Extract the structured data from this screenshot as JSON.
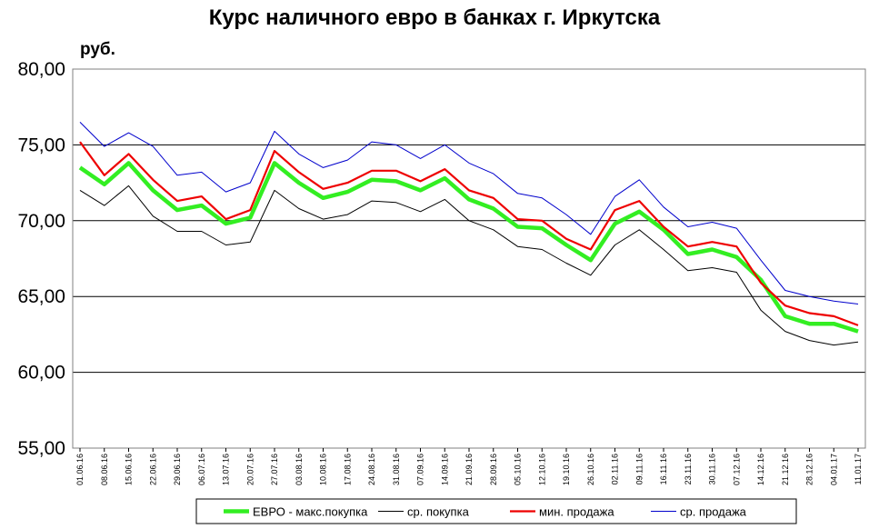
{
  "chart_data": {
    "type": "line",
    "title": "Курс наличного евро в банках г. Иркутска",
    "ylabel": "руб.",
    "xlabel": "",
    "ylim": [
      55,
      80
    ],
    "yticks": [
      "55,00",
      "60,00",
      "65,00",
      "70,00",
      "75,00",
      "80,00"
    ],
    "grid": "horizontal",
    "legend_position": "bottom",
    "x": [
      "01.06.16",
      "08.06.16",
      "15.06.16",
      "22.06.16",
      "29.06.16",
      "06.07.16",
      "13.07.16",
      "20.07.16",
      "27.07.16",
      "03.08.16",
      "10.08.16",
      "17.08.16",
      "24.08.16",
      "31.08.16",
      "07.09.16",
      "14.09.16",
      "21.09.16",
      "28.09.16",
      "05.10.16",
      "12.10.16",
      "19.10.16",
      "26.10.16",
      "02.11.16",
      "09.11.16",
      "16.11.16",
      "23.11.16",
      "30.11.16",
      "07.12.16",
      "14.12.16",
      "21.12.16",
      "28.12.16",
      "04.01.17",
      "11.01.17"
    ],
    "series": [
      {
        "name": "ЕВРО - макс.покупка",
        "color": "#33ee22",
        "values": [
          73.5,
          72.4,
          73.8,
          72.0,
          70.7,
          71.0,
          69.8,
          70.2,
          73.8,
          72.5,
          71.5,
          71.9,
          72.7,
          72.6,
          72.0,
          72.8,
          71.4,
          70.8,
          69.6,
          69.5,
          68.4,
          67.4,
          69.8,
          70.6,
          69.4,
          67.8,
          68.1,
          67.6,
          66.1,
          63.7,
          63.2,
          63.2,
          62.7
        ]
      },
      {
        "name": "ср. покупка",
        "color": "#000000",
        "values": [
          72.0,
          71.0,
          72.3,
          70.3,
          69.3,
          69.3,
          68.4,
          68.6,
          72.0,
          70.8,
          70.1,
          70.4,
          71.3,
          71.2,
          70.6,
          71.4,
          70.0,
          69.4,
          68.3,
          68.1,
          67.2,
          66.4,
          68.4,
          69.4,
          68.1,
          66.7,
          66.9,
          66.6,
          64.1,
          62.7,
          62.1,
          61.8,
          62.0
        ]
      },
      {
        "name": "мин. продажа",
        "color": "#ee0000",
        "values": [
          75.2,
          73.0,
          74.4,
          72.7,
          71.3,
          71.6,
          70.1,
          70.7,
          74.6,
          73.2,
          72.1,
          72.5,
          73.3,
          73.3,
          72.6,
          73.4,
          72.0,
          71.5,
          70.1,
          70.0,
          68.8,
          68.1,
          70.7,
          71.3,
          69.6,
          68.3,
          68.6,
          68.3,
          65.9,
          64.4,
          63.9,
          63.7,
          63.1
        ]
      },
      {
        "name": "ср. продажа",
        "color": "#0000cc",
        "values": [
          76.5,
          74.9,
          75.8,
          74.9,
          73.0,
          73.2,
          71.9,
          72.5,
          75.9,
          74.4,
          73.5,
          74.0,
          75.2,
          75.0,
          74.1,
          75.0,
          73.8,
          73.1,
          71.8,
          71.5,
          70.4,
          69.1,
          71.6,
          72.7,
          70.9,
          69.6,
          69.9,
          69.5,
          67.4,
          65.4,
          65.0,
          64.7,
          64.5
        ]
      }
    ]
  }
}
